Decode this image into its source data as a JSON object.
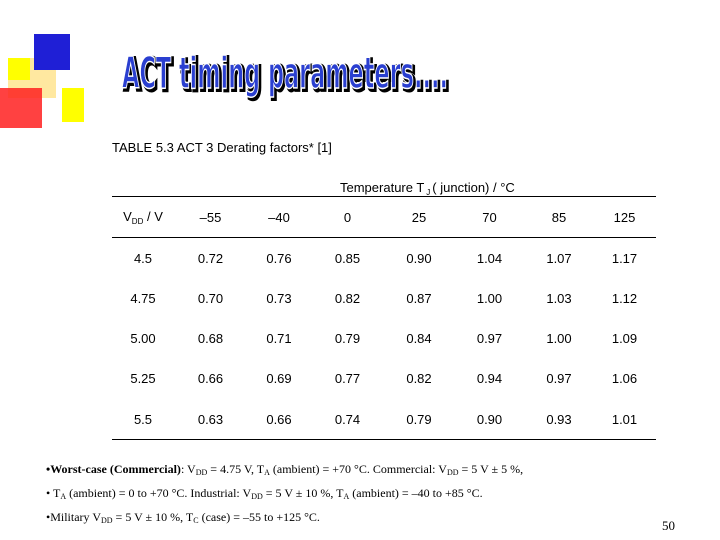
{
  "slide": {
    "title": "ACT timing parameters....",
    "caption": "TABLE 5.3  ACT 3 Derating factors* [1]",
    "temp_header": {
      "prefix": "Temperature T",
      "sub": "J",
      "suffix": "( junction) / °C"
    },
    "colors": {
      "square_yellow": "#ffff00",
      "square_blue": "#1f1fd6",
      "square_red": "#ff2020",
      "square_pale": "#ffe8a0",
      "title_fill": "#2a3fd0"
    },
    "page_number": "50"
  },
  "table": {
    "vdd_header": {
      "main": "V",
      "sub": "DD",
      "unit": " / V"
    },
    "temps": [
      "–55",
      "–40",
      "0",
      "25",
      "70",
      "85",
      "125"
    ],
    "rows": [
      [
        "4.5",
        "0.72",
        "0.76",
        "0.85",
        "0.90",
        "1.04",
        "1.07",
        "1.17"
      ],
      [
        "4.75",
        "0.70",
        "0.73",
        "0.82",
        "0.87",
        "1.00",
        "1.03",
        "1.12"
      ],
      [
        "5.00",
        "0.68",
        "0.71",
        "0.79",
        "0.84",
        "0.97",
        "1.00",
        "1.09"
      ],
      [
        "5.25",
        "0.66",
        "0.69",
        "0.77",
        "0.82",
        "0.94",
        "0.97",
        "1.06"
      ],
      [
        "5.5",
        "0.63",
        "0.66",
        "0.74",
        "0.79",
        "0.90",
        "0.93",
        "1.01"
      ]
    ]
  },
  "notes": {
    "line1": {
      "bullet_bold": "•Worst-case (Commercial)",
      "a": ": V",
      "a_sub": "DD",
      "b": " = 4.75 V, T",
      "b_sub": "A",
      "c": " (ambient) = +70 °C. Commercial: V",
      "c_sub": "DD",
      "d": " = 5 V ± 5 %,"
    },
    "line2": {
      "a": "• T",
      "a_sub": "A",
      "b": " (ambient) = 0 to +70 °C. Industrial: V",
      "b_sub": "DD",
      "c": " = 5 V ± 10 %, T",
      "c_sub": "A",
      "d": " (ambient) = –40 to +85 °C."
    },
    "line3": {
      "a": "•Military V",
      "a_sub": "DD",
      "b": " = 5 V ± 10 %, T",
      "b_sub": "C",
      "c": " (case) = –55 to +125 °C."
    }
  }
}
